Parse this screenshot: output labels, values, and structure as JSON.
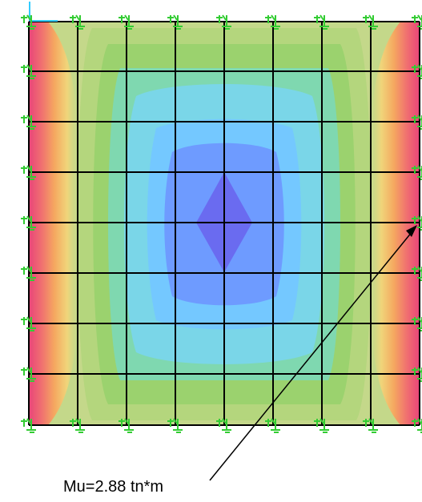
{
  "annotation": {
    "text": "Mu=2.88 tn*m"
  },
  "colors": {
    "contour_levels": [
      "#b4d67d",
      "#9bd26e",
      "#7fd8b0",
      "#7ad6e8",
      "#74c8ff",
      "#6e9bff",
      "#6a6bf0"
    ],
    "edge_gradient": [
      "#c4d88a",
      "#f0d57a",
      "#f5a860",
      "#f07070",
      "#e8447a"
    ],
    "grid_line": "#000000",
    "support_symbol": "#33cc33",
    "axis_marker": "#33ccff",
    "leader_line": "#000000"
  },
  "icons": {
    "support": "fixed-support-icon",
    "axis": "global-axis-icon"
  }
}
